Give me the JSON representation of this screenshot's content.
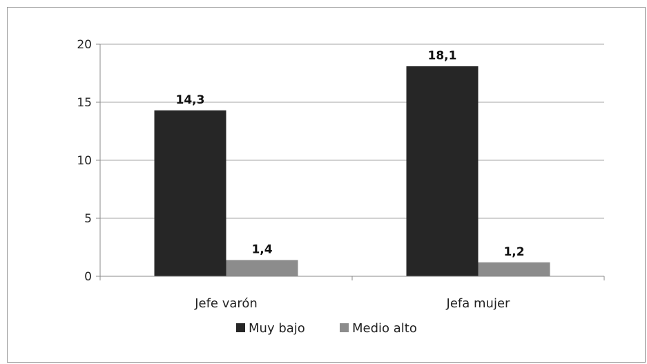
{
  "chart_data": {
    "type": "bar",
    "categories": [
      "Jefe varón",
      "Jefa mujer"
    ],
    "series": [
      {
        "name": "Muy bajo",
        "values": [
          14.3,
          18.1
        ],
        "labels": [
          "14,3",
          "18,1"
        ],
        "color": "#262626"
      },
      {
        "name": "Medio alto",
        "values": [
          1.4,
          1.2
        ],
        "labels": [
          "1,4",
          "1,2"
        ],
        "color": "#8c8c8c"
      }
    ],
    "y_ticks": [
      "0",
      "5",
      "10",
      "15",
      "20"
    ],
    "ylim": [
      0,
      20
    ],
    "grid": true,
    "legend_position": "bottom"
  }
}
